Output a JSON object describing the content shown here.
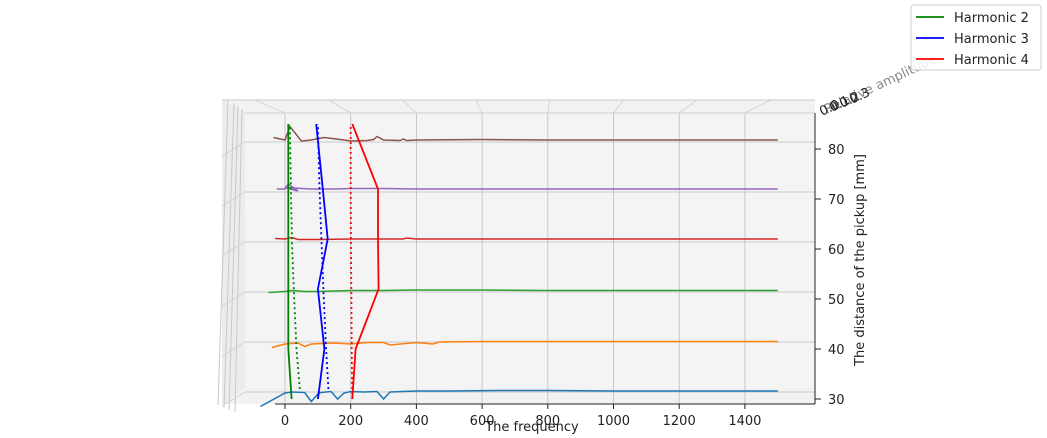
{
  "chart_data": {
    "type": "line",
    "projection": "3d",
    "xlabel": "The frequency",
    "ylabel": "The distance of the pickup [mm]",
    "zlabel": "Relative amplitude",
    "z_tick_labels": [
      "0.0",
      "0.1",
      "0.2",
      "0.3"
    ],
    "xlim": [
      -100,
      1600
    ],
    "ylim": [
      30,
      85
    ],
    "x_ticks": [
      0,
      200,
      400,
      600,
      800,
      1000,
      1200,
      1400
    ],
    "y_ticks": [
      30,
      40,
      50,
      60,
      70,
      80
    ],
    "grid": true,
    "legend_position": "top-right",
    "legend": [
      {
        "name": "Harmonic 2",
        "color": "#008000"
      },
      {
        "name": "Harmonic 3",
        "color": "#0000ff"
      },
      {
        "name": "Harmonic 4",
        "color": "#ff0000"
      }
    ],
    "spectra": [
      {
        "distance": 30,
        "color": "#1f77b4",
        "x": [
          -75,
          0,
          20,
          60,
          80,
          100,
          110,
          140,
          160,
          180,
          200,
          240,
          280,
          300,
          320,
          400,
          500,
          650,
          800,
          1000,
          1200,
          1500
        ],
        "y": [
          28.5,
          31.2,
          31.4,
          31.3,
          29.5,
          31.0,
          31.3,
          31.5,
          30.0,
          31.2,
          31.5,
          31.4,
          31.5,
          30.0,
          31.4,
          31.6,
          31.6,
          31.7,
          31.7,
          31.6,
          31.6,
          31.6
        ]
      },
      {
        "distance": 40,
        "color": "#ff7f0e",
        "x": [
          -40,
          0,
          40,
          60,
          80,
          150,
          200,
          250,
          300,
          320,
          400,
          450,
          470,
          600,
          800,
          1000,
          1200,
          1500
        ],
        "y": [
          40.3,
          41.0,
          41.2,
          40.5,
          41.0,
          41.2,
          41.0,
          41.3,
          41.3,
          40.8,
          41.3,
          41.0,
          41.4,
          41.5,
          41.5,
          41.5,
          41.5,
          41.5
        ]
      },
      {
        "distance": 50,
        "color": "#2ca02c",
        "x": [
          -50,
          0,
          20,
          60,
          100,
          150,
          200,
          300,
          400,
          600,
          800,
          1000,
          1200,
          1500
        ],
        "y": [
          51.3,
          51.5,
          51.7,
          51.5,
          51.5,
          51.6,
          51.7,
          51.7,
          51.8,
          51.8,
          51.7,
          51.7,
          51.7,
          51.7
        ]
      },
      {
        "distance": 60,
        "color": "#d62728",
        "x": [
          -30,
          0,
          20,
          40,
          100,
          200,
          300,
          360,
          370,
          400,
          600,
          800,
          1000,
          1200,
          1500
        ],
        "y": [
          62.1,
          62.0,
          62.3,
          61.9,
          61.9,
          62.0,
          62.0,
          62.0,
          62.2,
          62.0,
          62.0,
          62.0,
          62.0,
          62.0,
          62.0
        ]
      },
      {
        "distance": 70,
        "color": "#9467bd",
        "x": [
          -25,
          0,
          10,
          40,
          0,
          80,
          150,
          200,
          300,
          400,
          500,
          600,
          800,
          1000,
          1200,
          1500
        ],
        "y": [
          72.0,
          72.0,
          73.0,
          71.6,
          72.3,
          72.0,
          72.0,
          72.1,
          72.1,
          72.0,
          72.0,
          72.0,
          72.0,
          72.0,
          72.0,
          72.0
        ]
      },
      {
        "distance": 80,
        "color": "#8c564b",
        "x": [
          -35,
          0,
          15,
          50,
          80,
          95,
          120,
          180,
          200,
          250,
          270,
          280,
          300,
          350,
          360,
          370,
          400,
          600,
          800,
          1000,
          1200,
          1500
        ],
        "y": [
          82.3,
          81.8,
          84.5,
          81.6,
          81.8,
          82.0,
          82.3,
          81.8,
          81.6,
          81.7,
          81.9,
          82.5,
          81.8,
          81.7,
          82.0,
          81.7,
          81.8,
          81.9,
          81.8,
          81.8,
          81.8,
          81.8
        ]
      }
    ],
    "harmonic_lines": [
      {
        "name": "Harmonic 2",
        "color": "#008000",
        "style": "solid",
        "x": [
          20,
          10,
          10,
          10,
          10,
          10
        ],
        "y": [
          30,
          40,
          50,
          60,
          72,
          85
        ]
      },
      {
        "name": "Harmonic 3",
        "color": "#0000ff",
        "style": "solid",
        "x": [
          100,
          120,
          100,
          130,
          115,
          95
        ],
        "y": [
          30,
          40,
          52,
          62,
          72,
          85
        ]
      },
      {
        "name": "Harmonic 4",
        "color": "#ff0000",
        "style": "solid",
        "x": [
          205,
          215,
          285,
          283,
          283,
          205
        ],
        "y": [
          30,
          40,
          52,
          62,
          72,
          85
        ]
      },
      {
        "name": "Harmonic 2",
        "color": "#008000",
        "style": "dotted",
        "x": [
          45,
          35,
          28,
          22,
          18,
          15
        ],
        "y": [
          32,
          40,
          50,
          60,
          72,
          85
        ]
      },
      {
        "name": "Harmonic 3",
        "color": "#0000ff",
        "style": "dotted",
        "x": [
          132,
          125,
          118,
          112,
          105,
          100
        ],
        "y": [
          32,
          40,
          50,
          60,
          72,
          85
        ]
      },
      {
        "name": "Harmonic 4",
        "color": "#ff0000",
        "style": "dotted",
        "x": [
          205,
          203,
          202,
          201,
          200,
          200
        ],
        "y": [
          30,
          40,
          50,
          60,
          72,
          85
        ]
      }
    ]
  }
}
